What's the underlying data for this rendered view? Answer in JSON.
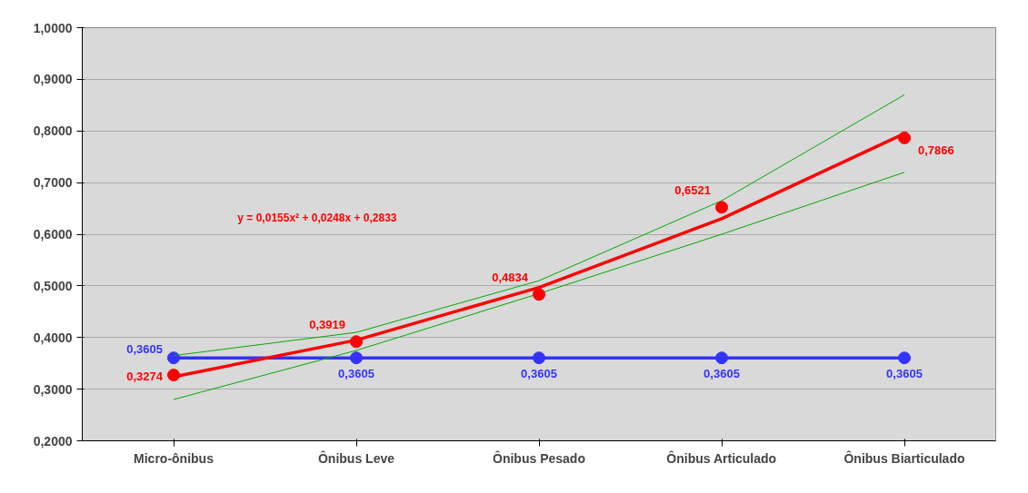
{
  "chart_data": {
    "type": "line",
    "categories": [
      "Micro-ônibus",
      "Ônibus Leve",
      "Ônibus Pesado",
      "Ônibus Articulado",
      "Ônibus Biarticulado"
    ],
    "ylim": [
      0.2,
      1.0
    ],
    "yticks": [
      {
        "value": 0.2,
        "label": "0,2000"
      },
      {
        "value": 0.3,
        "label": "0,3000"
      },
      {
        "value": 0.4,
        "label": "0,4000"
      },
      {
        "value": 0.5,
        "label": "0,5000"
      },
      {
        "value": 0.6,
        "label": "0,6000"
      },
      {
        "value": 0.7,
        "label": "0,7000"
      },
      {
        "value": 0.8,
        "label": "0,8000"
      },
      {
        "value": 0.9,
        "label": "0,9000"
      },
      {
        "value": 1.0,
        "label": "1,0000"
      }
    ],
    "grid": "y",
    "series": [
      {
        "color": "#3333ff",
        "marker": "circle",
        "values": [
          0.3605,
          0.3605,
          0.3605,
          0.3605,
          0.3605
        ],
        "value_labels": [
          "0,3605",
          "0,3605",
          "0,3605",
          "0,3605",
          "0,3605"
        ]
      },
      {
        "color": "#00aa00",
        "marker": "none",
        "values": [
          0.365,
          0.41,
          0.51,
          0.665,
          0.87
        ]
      },
      {
        "color": "#00aa00",
        "marker": "none",
        "values": [
          0.28,
          0.375,
          0.485,
          0.6,
          0.72
        ]
      },
      {
        "color": "#ff0000",
        "marker": "none",
        "values": [
          0.324,
          0.395,
          0.497,
          0.63,
          0.795
        ]
      },
      {
        "type": "scatter",
        "color": "#ff0000",
        "marker": "circle",
        "values": [
          0.3274,
          0.3919,
          0.4834,
          0.6521,
          0.7866
        ],
        "value_labels": [
          "0,3274",
          "0,3919",
          "0,4834",
          "0,6521",
          "0,7866"
        ]
      }
    ],
    "annotations": [
      "y = 0,0155x² + 0,0248x + 0,2833"
    ]
  }
}
